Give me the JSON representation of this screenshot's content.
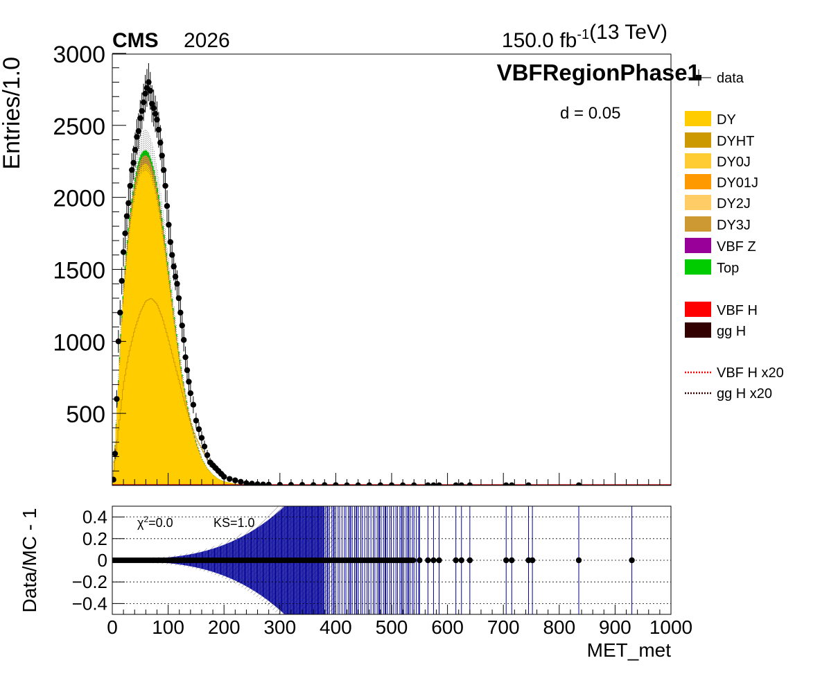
{
  "header": {
    "experiment": "CMS",
    "year": "2026",
    "lumi_value": "150.0 fb",
    "lumi_exp": "-1",
    "energy": "(13 TeV)",
    "region": "VBFRegionPhase1"
  },
  "annotations": {
    "d_stat": "d = 0.05",
    "chi2_label": "χ",
    "chi2_exp": "2",
    "chi2_value": "=0.0",
    "ks": "KS=1.0"
  },
  "colors": {
    "DY": "#ffcc00",
    "DYHT": "#cc9900",
    "DY0J": "#ffcc33",
    "DY01J": "#ff9900",
    "DY2J": "#ffcc66",
    "DY3J": "#cc9933",
    "VBF Z": "#990099",
    "Top": "#00cc00",
    "VBF H": "#ff0000",
    "gg H": "#330000",
    "ratio_err": "#000099"
  },
  "legend": [
    {
      "label": "data",
      "style": "marker"
    },
    {
      "label": "DY",
      "style": "fill",
      "color": "#ffcc00"
    },
    {
      "label": "DYHT",
      "style": "fill",
      "color": "#cc9900"
    },
    {
      "label": "DY0J",
      "style": "fill",
      "color": "#ffcc33"
    },
    {
      "label": "DY01J",
      "style": "fill",
      "color": "#ff9900"
    },
    {
      "label": "DY2J",
      "style": "fill",
      "color": "#ffcc66"
    },
    {
      "label": "DY3J",
      "style": "fill",
      "color": "#cc9933"
    },
    {
      "label": "VBF Z",
      "style": "fill",
      "color": "#990099"
    },
    {
      "label": "Top",
      "style": "fill",
      "color": "#00cc00"
    },
    {
      "label": "VBF H",
      "style": "fill",
      "color": "#ff0000"
    },
    {
      "label": "gg H",
      "style": "fill",
      "color": "#330000"
    },
    {
      "label": "VBF H x20",
      "style": "dotted",
      "color": "#ff0000"
    },
    {
      "label": "gg H x20",
      "style": "dotted",
      "color": "#330000"
    }
  ],
  "chart_data": [
    {
      "type": "area",
      "title": "",
      "xlabel": "",
      "ylabel": "Entries/1.0",
      "xlim": [
        0,
        1000
      ],
      "ylim": [
        0,
        3000
      ],
      "yticks": [
        500,
        1000,
        1500,
        2000,
        2500,
        3000
      ],
      "stack_total": {
        "x": [
          0,
          5,
          10,
          15,
          20,
          25,
          30,
          35,
          40,
          45,
          50,
          55,
          60,
          65,
          70,
          75,
          80,
          85,
          90,
          95,
          100,
          105,
          110,
          115,
          120,
          125,
          130,
          135,
          140,
          145,
          150,
          160,
          170,
          180,
          190,
          200,
          220,
          240,
          260,
          280,
          300,
          350,
          400,
          500,
          1000
        ],
        "y": [
          0,
          280,
          650,
          1050,
          1380,
          1620,
          1830,
          1990,
          2120,
          2220,
          2290,
          2320,
          2330,
          2310,
          2260,
          2190,
          2090,
          1970,
          1830,
          1680,
          1520,
          1360,
          1200,
          1050,
          900,
          770,
          650,
          545,
          450,
          370,
          300,
          190,
          120,
          75,
          45,
          28,
          12,
          6,
          3,
          2,
          1,
          0.5,
          0.2,
          0,
          0
        ]
      },
      "dy2j_inner": {
        "x": [
          0,
          10,
          20,
          30,
          40,
          50,
          60,
          70,
          80,
          90,
          100,
          110,
          120,
          130,
          140,
          150,
          170,
          200,
          250,
          300
        ],
        "y": [
          0,
          350,
          700,
          920,
          1080,
          1200,
          1280,
          1300,
          1260,
          1160,
          1020,
          870,
          720,
          570,
          440,
          330,
          180,
          60,
          8,
          0
        ]
      },
      "data": {
        "x": [
          2,
          5,
          8,
          11,
          14,
          17,
          20,
          23,
          26,
          29,
          32,
          35,
          38,
          41,
          44,
          47,
          50,
          53,
          56,
          59,
          62,
          65,
          68,
          71,
          74,
          77,
          80,
          83,
          86,
          89,
          92,
          95,
          98,
          101,
          104,
          107,
          110,
          113,
          116,
          119,
          122,
          125,
          128,
          131,
          134,
          137,
          140,
          145,
          150,
          155,
          160,
          165,
          170,
          175,
          180,
          185,
          190,
          195,
          200,
          210,
          220,
          230,
          240,
          250,
          260,
          270,
          280,
          300,
          320,
          340,
          360,
          380,
          400,
          420,
          440,
          460,
          480,
          500,
          520,
          540,
          565,
          575,
          585,
          615,
          625,
          640,
          705,
          715,
          745,
          835
        ],
        "y": [
          40,
          220,
          600,
          1000,
          1200,
          1420,
          1620,
          1750,
          1870,
          1960,
          2080,
          2190,
          2240,
          2330,
          2420,
          2460,
          2550,
          2600,
          2660,
          2720,
          2760,
          2800,
          2740,
          2650,
          2620,
          2580,
          2540,
          2470,
          2380,
          2290,
          2190,
          2080,
          1940,
          1810,
          1690,
          1600,
          1520,
          1450,
          1400,
          1300,
          1200,
          1110,
          1010,
          890,
          800,
          720,
          640,
          560,
          450,
          390,
          330,
          270,
          210,
          160,
          140,
          120,
          100,
          80,
          60,
          45,
          35,
          25,
          15,
          12,
          8,
          6,
          5,
          4,
          3,
          3,
          2,
          2,
          2,
          1,
          1,
          1,
          1,
          1,
          1,
          1,
          1,
          1,
          1,
          1,
          1,
          1,
          1,
          1,
          1,
          1
        ]
      }
    },
    {
      "type": "scatter",
      "title": "",
      "xlabel": "MET_met",
      "ylabel": "Data/MC - 1",
      "xlim": [
        0,
        1000
      ],
      "ylim": [
        -0.5,
        0.5
      ],
      "xticks": [
        0,
        100,
        200,
        300,
        400,
        500,
        600,
        700,
        800,
        900,
        1000
      ],
      "yticks": [
        -0.4,
        -0.2,
        0,
        0.2,
        0.4
      ],
      "ytick_labels": [
        "−0.4",
        "−0.2",
        "0",
        "0.2",
        "0.4"
      ],
      "points_x": [
        550,
        565,
        575,
        585,
        615,
        625,
        640,
        705,
        715,
        745,
        752,
        835,
        930
      ],
      "points_y": [
        0,
        0,
        0,
        0,
        0,
        0,
        0,
        0,
        0,
        0,
        0,
        0,
        0
      ]
    }
  ]
}
